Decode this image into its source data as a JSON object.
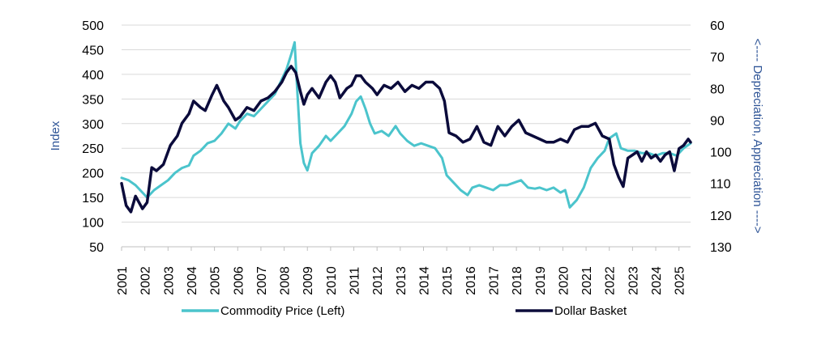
{
  "chart_data": {
    "type": "line",
    "title": "",
    "xlabel": "",
    "ylabel": "Index",
    "y2label": "<---- Depreciation, Appreciation ---->",
    "xlim": [
      2001,
      2025.5
    ],
    "ylim": [
      50,
      500
    ],
    "y2lim": [
      60,
      130
    ],
    "y2_inverted": true,
    "x_ticks": [
      "2001",
      "2002",
      "2003",
      "2004",
      "2005",
      "2006",
      "2007",
      "2008",
      "2009",
      "2010",
      "2011",
      "2012",
      "2013",
      "2014",
      "2015",
      "2016",
      "2017",
      "2018",
      "2019",
      "2020",
      "2021",
      "2022",
      "2023",
      "2024",
      "2025"
    ],
    "y_ticks": [
      "50",
      "100",
      "150",
      "200",
      "250",
      "300",
      "350",
      "400",
      "450",
      "500"
    ],
    "y2_ticks": [
      "60",
      "70",
      "80",
      "90",
      "100",
      "110",
      "120",
      "130"
    ],
    "grid": true,
    "legend_position": "bottom",
    "series": [
      {
        "name": "Commodity Price (Left)",
        "axis": "left",
        "color": "#4bc4cc",
        "x": [
          2001.0,
          2001.3,
          2001.6,
          2001.9,
          2002.1,
          2002.4,
          2002.7,
          2003.0,
          2003.3,
          2003.6,
          2003.9,
          2004.1,
          2004.4,
          2004.7,
          2005.0,
          2005.3,
          2005.6,
          2005.9,
          2006.1,
          2006.4,
          2006.7,
          2007.0,
          2007.3,
          2007.6,
          2007.9,
          2008.1,
          2008.3,
          2008.45,
          2008.55,
          2008.7,
          2008.85,
          2009.0,
          2009.2,
          2009.5,
          2009.8,
          2010.0,
          2010.3,
          2010.6,
          2010.9,
          2011.1,
          2011.3,
          2011.5,
          2011.7,
          2011.9,
          2012.2,
          2012.5,
          2012.8,
          2013.0,
          2013.3,
          2013.6,
          2013.9,
          2014.2,
          2014.5,
          2014.8,
          2015.0,
          2015.3,
          2015.6,
          2015.9,
          2016.1,
          2016.4,
          2016.7,
          2017.0,
          2017.3,
          2017.6,
          2017.9,
          2018.2,
          2018.5,
          2018.8,
          2019.0,
          2019.3,
          2019.6,
          2019.9,
          2020.1,
          2020.3,
          2020.6,
          2020.9,
          2021.2,
          2021.5,
          2021.8,
          2022.0,
          2022.3,
          2022.5,
          2022.8,
          2023.1,
          2023.4,
          2023.7,
          2024.0,
          2024.3,
          2024.6,
          2024.9,
          2025.2,
          2025.5
        ],
        "values": [
          190,
          185,
          175,
          160,
          150,
          165,
          175,
          185,
          200,
          210,
          215,
          235,
          245,
          260,
          265,
          280,
          300,
          290,
          305,
          320,
          315,
          330,
          345,
          360,
          390,
          410,
          440,
          465,
          380,
          260,
          220,
          205,
          240,
          255,
          275,
          265,
          280,
          295,
          320,
          345,
          355,
          330,
          300,
          280,
          285,
          275,
          295,
          280,
          265,
          255,
          260,
          255,
          250,
          230,
          195,
          180,
          165,
          155,
          170,
          175,
          170,
          165,
          175,
          175,
          180,
          185,
          170,
          168,
          170,
          165,
          170,
          160,
          165,
          130,
          145,
          170,
          210,
          230,
          245,
          270,
          280,
          250,
          245,
          245,
          240,
          240,
          235,
          240,
          240,
          235,
          250,
          260
        ]
      },
      {
        "name": "Dollar Basket",
        "axis": "right",
        "color": "#0b0b3b",
        "x": [
          2001.0,
          2001.2,
          2001.4,
          2001.6,
          2001.9,
          2002.1,
          2002.3,
          2002.5,
          2002.8,
          2003.1,
          2003.4,
          2003.6,
          2003.9,
          2004.1,
          2004.4,
          2004.6,
          2004.9,
          2005.1,
          2005.4,
          2005.6,
          2005.9,
          2006.1,
          2006.4,
          2006.7,
          2007.0,
          2007.3,
          2007.6,
          2007.9,
          2008.1,
          2008.3,
          2008.5,
          2008.7,
          2008.85,
          2009.0,
          2009.2,
          2009.5,
          2009.8,
          2010.0,
          2010.2,
          2010.4,
          2010.7,
          2010.9,
          2011.1,
          2011.3,
          2011.5,
          2011.8,
          2012.0,
          2012.3,
          2012.6,
          2012.9,
          2013.2,
          2013.5,
          2013.8,
          2014.1,
          2014.4,
          2014.7,
          2014.9,
          2015.1,
          2015.4,
          2015.7,
          2016.0,
          2016.3,
          2016.6,
          2016.9,
          2017.2,
          2017.5,
          2017.8,
          2018.1,
          2018.4,
          2018.7,
          2019.0,
          2019.3,
          2019.6,
          2019.9,
          2020.2,
          2020.5,
          2020.8,
          2021.1,
          2021.4,
          2021.7,
          2022.0,
          2022.2,
          2022.4,
          2022.6,
          2022.8,
          2023.0,
          2023.2,
          2023.4,
          2023.6,
          2023.8,
          2024.0,
          2024.2,
          2024.4,
          2024.6,
          2024.8,
          2025.0,
          2025.2,
          2025.4,
          2025.5
        ],
        "values": [
          110,
          117,
          119,
          114,
          118,
          116,
          105,
          106,
          104,
          98,
          95,
          91,
          88,
          84,
          86,
          87,
          82,
          79,
          84,
          86,
          90,
          89,
          86,
          87,
          84,
          83,
          81,
          78,
          75,
          73,
          75,
          81,
          85,
          82,
          80,
          83,
          78,
          76,
          78,
          83,
          80,
          79,
          76,
          76,
          78,
          80,
          82,
          79,
          80,
          78,
          81,
          79,
          80,
          78,
          78,
          80,
          84,
          94,
          95,
          97,
          96,
          92,
          97,
          98,
          92,
          95,
          92,
          90,
          94,
          95,
          96,
          97,
          97,
          96,
          97,
          93,
          92,
          92,
          91,
          95,
          96,
          104,
          108,
          111,
          102,
          101,
          100,
          103,
          100,
          102,
          101,
          103,
          101,
          100,
          106,
          99,
          98,
          96,
          97
        ]
      }
    ]
  }
}
